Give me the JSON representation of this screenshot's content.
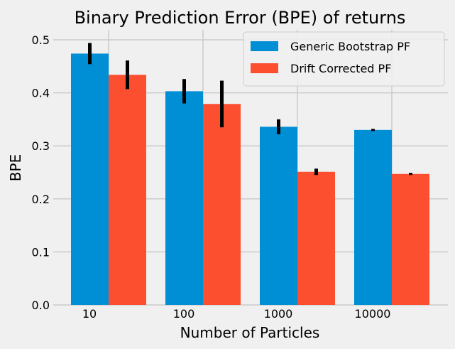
{
  "chart_data": {
    "type": "bar",
    "title": "Binary Prediction Error (BPE) of returns",
    "xlabel": "Number of Particles",
    "ylabel": "BPE",
    "categories": [
      "10",
      "100",
      "1000",
      "10000"
    ],
    "ylim": [
      0,
      0.52
    ],
    "yticks": [
      "0.0",
      "0.1",
      "0.2",
      "0.3",
      "0.4",
      "0.5"
    ],
    "grid": true,
    "legend_position": "top-right",
    "series": [
      {
        "name": "Generic Bootstrap PF",
        "color": "#008fd5",
        "values": [
          0.474,
          0.403,
          0.336,
          0.33
        ],
        "errors": [
          0.02,
          0.023,
          0.014,
          0.002
        ]
      },
      {
        "name": "Drift Corrected PF",
        "color": "#fc4f30",
        "values": [
          0.434,
          0.379,
          0.251,
          0.247
        ],
        "errors": [
          0.027,
          0.044,
          0.006,
          0.002
        ]
      }
    ]
  }
}
